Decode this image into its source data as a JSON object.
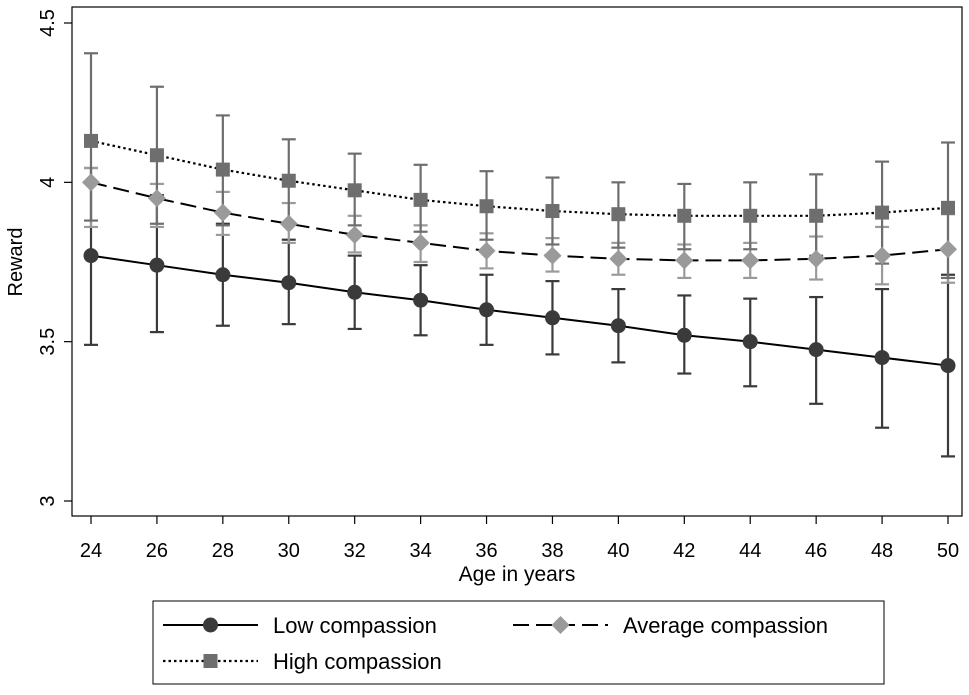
{
  "chart_data": {
    "type": "line",
    "xlabel": "Age in years",
    "ylabel": "Reward",
    "xlim": [
      23.5,
      50.5
    ],
    "ylim": [
      2.97,
      4.5
    ],
    "xticks": [
      24,
      26,
      28,
      30,
      32,
      34,
      36,
      38,
      40,
      42,
      44,
      46,
      48,
      50
    ],
    "yticks": [
      3,
      3.5,
      4,
      4.5
    ],
    "ytick_labels": [
      "3",
      "3.5",
      "4",
      "4.5"
    ],
    "x": [
      24,
      26,
      28,
      30,
      32,
      34,
      36,
      38,
      40,
      42,
      44,
      46,
      48,
      50
    ],
    "series": [
      {
        "name": "Low compassion",
        "color": "#3a3a3a",
        "line_style": "solid",
        "marker": "circle",
        "values": [
          3.77,
          3.74,
          3.71,
          3.685,
          3.655,
          3.63,
          3.6,
          3.575,
          3.55,
          3.52,
          3.5,
          3.475,
          3.45,
          3.425
        ],
        "lower": [
          3.49,
          3.53,
          3.55,
          3.555,
          3.54,
          3.52,
          3.49,
          3.46,
          3.435,
          3.4,
          3.36,
          3.305,
          3.23,
          3.14
        ],
        "upper": [
          4.045,
          3.96,
          3.87,
          3.82,
          3.77,
          3.74,
          3.71,
          3.69,
          3.665,
          3.645,
          3.635,
          3.64,
          3.665,
          3.71
        ]
      },
      {
        "name": "Average compassion",
        "color": "#9a9a9a",
        "line_style": "dashed",
        "marker": "diamond",
        "values": [
          4.0,
          3.95,
          3.905,
          3.87,
          3.835,
          3.81,
          3.785,
          3.77,
          3.76,
          3.755,
          3.755,
          3.76,
          3.77,
          3.79
        ],
        "lower": [
          3.86,
          3.86,
          3.835,
          3.81,
          3.78,
          3.75,
          3.73,
          3.72,
          3.71,
          3.7,
          3.7,
          3.695,
          3.68,
          3.685
        ],
        "upper": [
          4.045,
          3.995,
          3.97,
          3.935,
          3.895,
          3.865,
          3.84,
          3.825,
          3.81,
          3.805,
          3.81,
          3.83,
          3.86,
          3.9
        ]
      },
      {
        "name": "High compassion",
        "color": "#6e6e6e",
        "line_style": "dotted",
        "marker": "square",
        "values": [
          4.13,
          4.085,
          4.04,
          4.005,
          3.975,
          3.945,
          3.925,
          3.91,
          3.9,
          3.895,
          3.895,
          3.895,
          3.905,
          3.92
        ],
        "lower": [
          3.88,
          3.87,
          3.865,
          3.87,
          3.865,
          3.845,
          3.82,
          3.805,
          3.795,
          3.79,
          3.79,
          3.77,
          3.745,
          3.7
        ],
        "upper": [
          4.405,
          4.3,
          4.21,
          4.135,
          4.09,
          4.055,
          4.035,
          4.015,
          4.0,
          3.995,
          4.0,
          4.025,
          4.065,
          4.125
        ]
      }
    ],
    "legend_position": "bottom",
    "legend_order": [
      "Low compassion",
      "Average compassion",
      "High compassion"
    ]
  }
}
